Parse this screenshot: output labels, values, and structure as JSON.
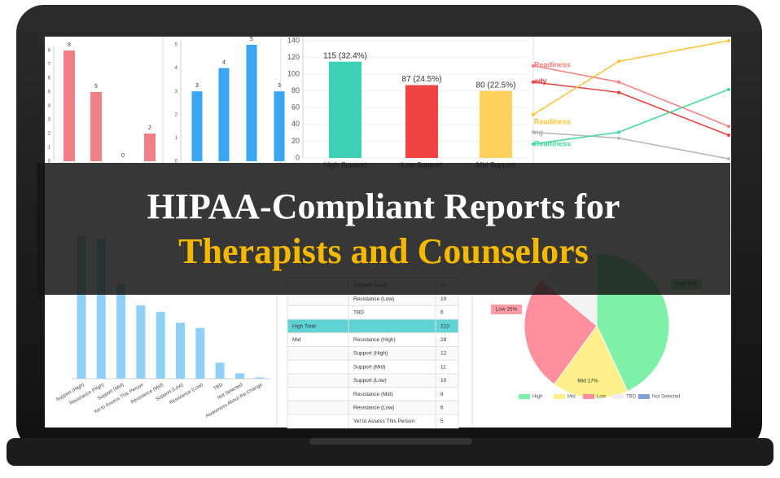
{
  "banner": {
    "line1": "HIPAA-Compliant Reports for",
    "line2": "Therapists and Counselors"
  },
  "top_charts": [
    {
      "type": "bar",
      "color": "#f07f86",
      "values": [
        8,
        5,
        0,
        2
      ],
      "ylim": [
        0,
        8
      ],
      "yticks": [
        0,
        1,
        2,
        3,
        4,
        5,
        6,
        7,
        8
      ]
    },
    {
      "type": "bar",
      "color": "#3aa5f0",
      "values": [
        3,
        4,
        5,
        3
      ],
      "ylim": [
        0,
        5
      ],
      "yticks": [
        0,
        1,
        2,
        3,
        4,
        5
      ]
    },
    {
      "type": "bar",
      "categories": [
        "High Support",
        "Low Support",
        "Mid Support"
      ],
      "colors": [
        "#3fd1b5",
        "#f04444",
        "#fdd35c"
      ],
      "values": [
        115,
        87,
        80
      ],
      "value_labels": [
        "115 (32.4%)",
        "87 (24.5%)",
        "80 (22.5%)"
      ],
      "ylim": [
        0,
        140
      ],
      "yticks": [
        0,
        20,
        40,
        60,
        80,
        100,
        120,
        140
      ]
    },
    {
      "type": "line",
      "ylim": [
        0,
        80
      ],
      "series": [
        {
          "name": "Readiness",
          "color": "#ff7b7b",
          "values": [
            63,
            52,
            22
          ]
        },
        {
          "name": "ady",
          "color": "#e83b3b",
          "values": [
            52,
            45,
            16
          ]
        },
        {
          "name": "Readiness",
          "color": "#ffc233",
          "values": [
            30,
            66,
            80
          ]
        },
        {
          "name": "ng",
          "color": "#b5b5b5",
          "values": [
            18,
            14,
            0
          ]
        },
        {
          "name": "Readiness",
          "color": "#3fd89a",
          "values": [
            10,
            18,
            47
          ]
        }
      ]
    }
  ],
  "bottom_chart": {
    "type": "bar",
    "color": "#8fd0f7",
    "ylim": [
      0,
      110
    ],
    "categories": [
      "Support (High)",
      "Resistance (High)",
      "Support (Mid)",
      "Yet to Assess This Person",
      "Resistance (Mid)",
      "Support (Low)",
      "Resistance (Low)",
      "TBD",
      "Not Selected",
      "Awareness About the Change"
    ],
    "values": [
      107,
      105,
      71,
      55,
      50,
      42,
      38,
      12,
      4,
      1
    ]
  },
  "table": {
    "rows": [
      [
        null,
        "Support (Low)",
        17
      ],
      [
        null,
        "Resistance (Low)",
        10
      ],
      [
        null,
        "TBD",
        6
      ],
      [
        "High Total",
        null,
        210
      ],
      [
        "Mid",
        "Resistance (High)",
        28
      ],
      [
        null,
        "Support (High)",
        12
      ],
      [
        null,
        "Support (Mid)",
        11
      ],
      [
        null,
        "Support (Low)",
        10
      ],
      [
        null,
        "Resistance (Mid)",
        8
      ],
      [
        null,
        "Resistance (Low)",
        6
      ],
      [
        null,
        "Yet to Assess This Person",
        5
      ]
    ]
  },
  "pie": {
    "type": "pie",
    "slices": [
      {
        "value": 43,
        "label": "High 43%",
        "color": "#7ff0a8"
      },
      {
        "value": 17,
        "label": "Mid 17%",
        "color": "#fdf08a"
      },
      {
        "value": 26,
        "label": "Low 26%",
        "color": "#ff8f9c"
      },
      {
        "value": 14,
        "color": "#f4f4f4"
      }
    ],
    "legend": [
      {
        "name": "High",
        "color": "#7ff0a8"
      },
      {
        "name": "Mid",
        "color": "#fdf08a"
      },
      {
        "name": "Low",
        "color": "#ff8f9c"
      },
      {
        "name": "TBD",
        "color": "#eeeeee"
      },
      {
        "name": "Not Selected",
        "color": "#7fa0d8"
      }
    ]
  }
}
